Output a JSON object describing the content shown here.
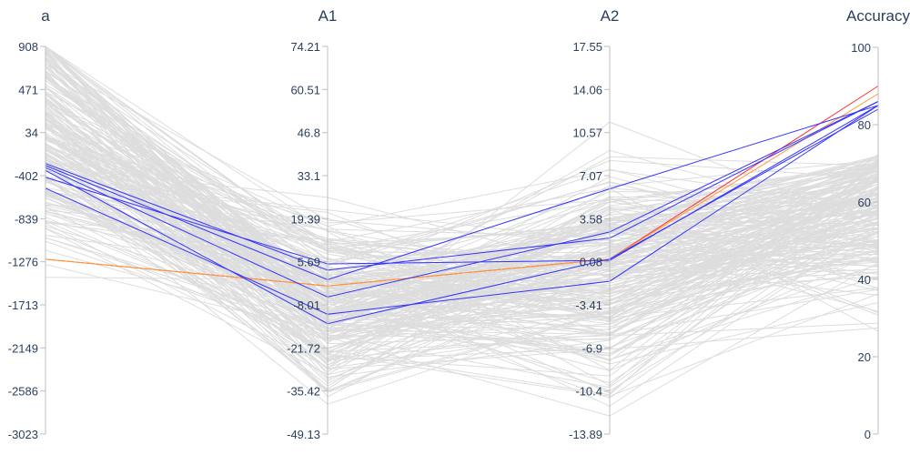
{
  "chart_data": {
    "type": "parallel_coordinates",
    "axes": [
      {
        "name": "a",
        "range": [
          -3023,
          908
        ],
        "ticks": [
          "908",
          "471",
          "34",
          "-402",
          "-839",
          "-1276",
          "-1713",
          "-2149",
          "-2586",
          "-3023"
        ]
      },
      {
        "name": "A1",
        "range": [
          -49.13,
          74.21
        ],
        "ticks": [
          "74.21",
          "60.51",
          "46.8",
          "33.1",
          "19.39",
          "5.69",
          "-8.01",
          "-21.72",
          "-35.42",
          "-49.13"
        ]
      },
      {
        "name": "A2",
        "range": [
          -13.89,
          17.55
        ],
        "ticks": [
          "17.55",
          "14.06",
          "10.57",
          "7.07",
          "3.58",
          "0.08",
          "-3.41",
          "-6.9",
          "-10.4",
          "-13.89"
        ]
      },
      {
        "name": "Accuracy",
        "range": [
          0,
          100
        ],
        "ticks": [
          "100",
          "80",
          "60",
          "40",
          "20",
          "0"
        ]
      }
    ],
    "highlighted_lines": [
      {
        "color": "#ff3333",
        "values": [
          -1250,
          -2.0,
          0.3,
          90
        ]
      },
      {
        "color": "#ff9933",
        "values": [
          -1250,
          -2.0,
          0.3,
          88
        ]
      },
      {
        "color": "#3333ff",
        "values": [
          -300,
          0.0,
          6.0,
          85
        ]
      },
      {
        "color": "#3333ff",
        "values": [
          -320,
          -5.5,
          2.5,
          86
        ]
      },
      {
        "color": "#3333ff",
        "values": [
          -350,
          -14.0,
          0.3,
          84
        ]
      },
      {
        "color": "#3333ff",
        "values": [
          -530,
          -11.0,
          -1.5,
          85
        ]
      },
      {
        "color": "#3333ff",
        "values": [
          -280,
          3.0,
          2.0,
          86
        ]
      },
      {
        "color": "#3333ff",
        "values": [
          -420,
          5.0,
          0.2,
          85
        ]
      }
    ],
    "background_line_color": "#dddddd",
    "background_line_count": 220
  }
}
